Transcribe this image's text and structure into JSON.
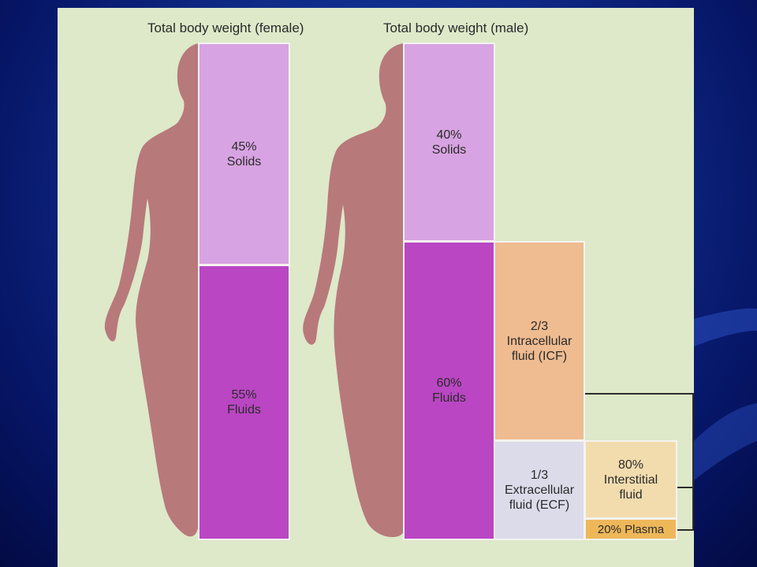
{
  "slide": {
    "background_colors": [
      "#1a3fa8",
      "#061566"
    ],
    "panel_color": "#dde9c9"
  },
  "female": {
    "title": "Total body weight (female)",
    "solids": {
      "percent": "45%",
      "label": "Solids"
    },
    "fluids": {
      "percent": "55%",
      "label": "Fluids"
    }
  },
  "male": {
    "title": "Total body weight (male)",
    "solids": {
      "percent": "40%",
      "label": "Solids"
    },
    "fluids": {
      "percent": "60%",
      "label": "Fluids"
    }
  },
  "fluid_breakdown": {
    "icf": {
      "fraction": "2/3",
      "line1": "Intracellular",
      "line2": "fluid (ICF)"
    },
    "ecf": {
      "fraction": "1/3",
      "line1": "Extracellular",
      "line2": "fluid (ECF)"
    },
    "interstitial": {
      "percent": "80%",
      "line1": "Interstitial",
      "line2": "fluid"
    },
    "plasma": {
      "label": "20% Plasma"
    }
  },
  "colors": {
    "solids": "#d8a3e2",
    "fluids": "#ba46c4",
    "icf": "#efbb90",
    "ecf": "#dcdbea",
    "interstitial": "#f2dcae",
    "plasma": "#eeb75a",
    "silhouette": "#b8797b"
  }
}
